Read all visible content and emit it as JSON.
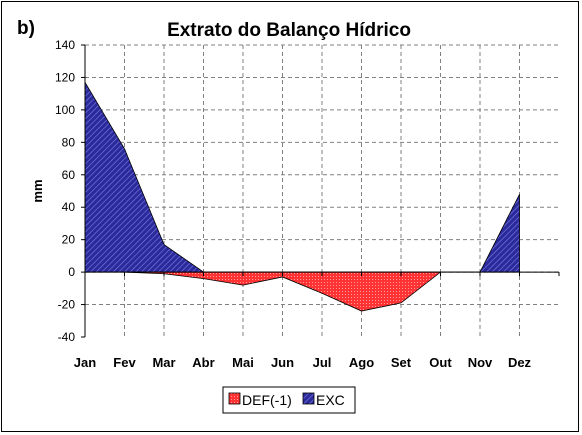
{
  "panel_label": "b)",
  "colors": {
    "DEF": "#ff3333",
    "EXC": "#2a2a9c",
    "grid": "#808080",
    "axis": "#000000"
  },
  "chart_data": {
    "type": "area",
    "title": "Extrato do Balanço Hídrico",
    "xlabel": "",
    "ylabel": "mm",
    "categories": [
      "Jan",
      "Fev",
      "Mar",
      "Abr",
      "Mai",
      "Jun",
      "Jul",
      "Ago",
      "Set",
      "Out",
      "Nov",
      "Dez"
    ],
    "ylim": [
      -40,
      140
    ],
    "yticks": [
      -40,
      -20,
      0,
      20,
      40,
      60,
      80,
      100,
      120,
      140
    ],
    "grid": true,
    "legend_position": "bottom",
    "series": [
      {
        "name": "DEF(-1)",
        "values": [
          0,
          0,
          -1,
          -4,
          -8,
          -3,
          -13,
          -24,
          -19,
          0,
          0,
          0
        ]
      },
      {
        "name": "EXC",
        "values": [
          117,
          76,
          17,
          0,
          0,
          0,
          0,
          0,
          0,
          0,
          0,
          48
        ]
      }
    ]
  }
}
